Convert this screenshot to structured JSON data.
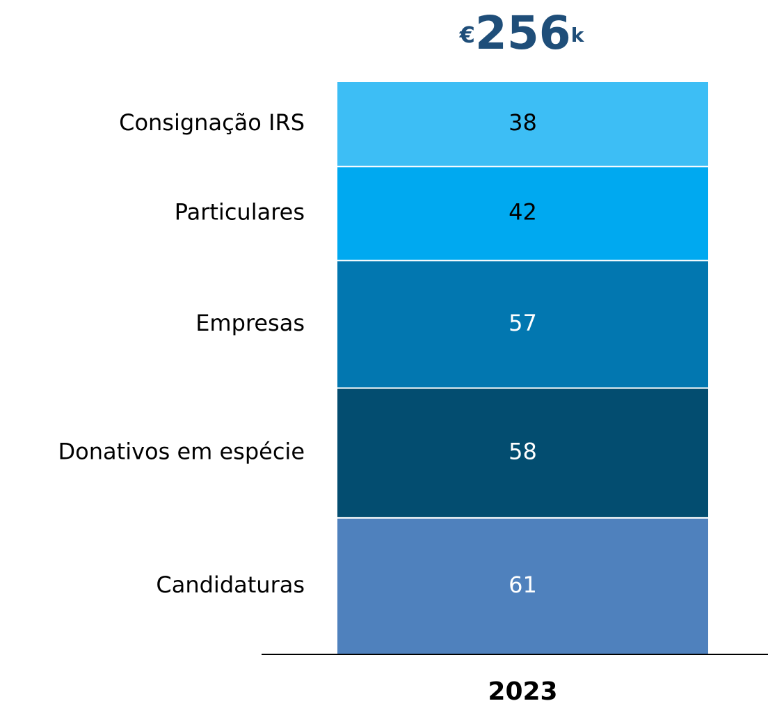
{
  "chart_data": {
    "type": "stacked_bar",
    "title_parts": [
      "€",
      "256",
      "k"
    ],
    "title_color": "#1f4e79",
    "categories": [
      "2023"
    ],
    "series": [
      {
        "name": "Candidaturas",
        "color": "#4f81bd",
        "label_color": "#ffffff",
        "values": [
          61
        ]
      },
      {
        "name": "Donativos em espécie",
        "color": "#034d70",
        "label_color": "#ffffff",
        "values": [
          58
        ]
      },
      {
        "name": "Empresas",
        "color": "#0277b0",
        "label_color": "#ffffff",
        "values": [
          57
        ]
      },
      {
        "name": "Particulares",
        "color": "#00a9f0",
        "label_color": "#000000",
        "values": [
          42
        ]
      },
      {
        "name": "Consignação IRS",
        "color": "#3dbef5",
        "label_color": "#000000",
        "values": [
          38
        ]
      }
    ]
  }
}
